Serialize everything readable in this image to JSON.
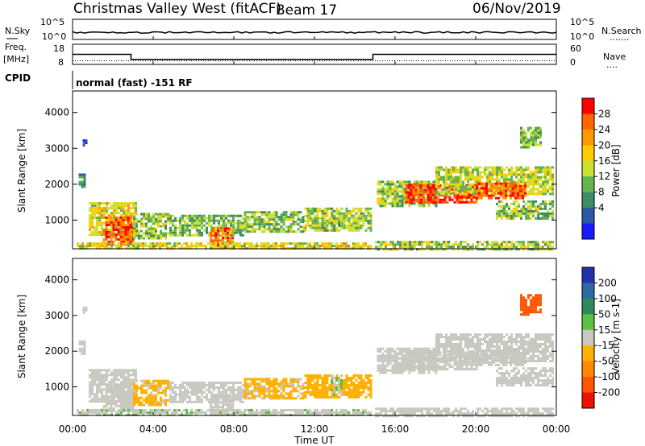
{
  "header": {
    "title": "Christmas Valley West (fitACF)",
    "beam": "Beam 17",
    "date": "06/Nov/2019"
  },
  "sky_panel": {
    "left_label": "N.Sky",
    "right_label": "N.Search",
    "left_ticks": [
      "10^5",
      "10^0"
    ],
    "right_ticks": [
      "10^5",
      "10^0"
    ],
    "right_legend": "......."
  },
  "freq_panel": {
    "left_label_1": "Freq.",
    "left_label_2": "[MHz]",
    "left_ticks": [
      "18",
      "8"
    ],
    "right_label": "Nave",
    "right_ticks": [
      "60",
      "0"
    ],
    "right_legend": "...."
  },
  "cpid": {
    "label": "CPID",
    "value": "normal (fast) -151 RF"
  },
  "power_colorbar": {
    "label": "Power [dB]",
    "ticks": [
      "28",
      "24",
      "20",
      "16",
      "12",
      "8",
      "4"
    ],
    "colors": [
      "#ff0000",
      "#ff6600",
      "#ff9900",
      "#ffcc00",
      "#cce033",
      "#66b34d",
      "#3d8c66",
      "#2d5aa6",
      "#1a1aff"
    ]
  },
  "velocity_colorbar": {
    "label": "Velocity [m s-1]",
    "ticks": [
      "200",
      "100",
      "50",
      "15",
      "-15",
      "-50",
      "-100",
      "-200"
    ],
    "colors": [
      "#2233aa",
      "#2d6aa0",
      "#2f8a5a",
      "#5bc040",
      "#c8c8c0",
      "#ffb000",
      "#ff8800",
      "#ff5500",
      "#ee1100"
    ]
  },
  "axes": {
    "ylabel": "Slant Range [km]",
    "yticks": [
      "4000",
      "3000",
      "2000",
      "1000"
    ],
    "xlabel": "Time UT",
    "xticks": [
      "00:00",
      "04:00",
      "08:00",
      "12:00",
      "16:00",
      "20:00",
      "00:00"
    ]
  },
  "chart_data": {
    "type": "heatmap",
    "x_unit": "hours UT",
    "xlim": [
      0,
      24
    ],
    "ylim": [
      200,
      4600
    ],
    "y_unit": "km",
    "power_clim": [
      0,
      32
    ],
    "velocity_clim": [
      -250,
      250
    ],
    "backscatter_regions": [
      {
        "t0": 0.3,
        "t1": 0.6,
        "r0": 1900,
        "r1": 2300,
        "power": 8,
        "velocity": -15
      },
      {
        "t0": 0.5,
        "t1": 0.7,
        "r0": 3050,
        "r1": 3250,
        "power": 6,
        "velocity": -15
      },
      {
        "t0": 0.8,
        "t1": 3.2,
        "r0": 600,
        "r1": 1500,
        "power": 18,
        "velocity": -15
      },
      {
        "t0": 1.5,
        "t1": 3.0,
        "r0": 300,
        "r1": 1100,
        "power": 28,
        "velocity": -15
      },
      {
        "t0": 3.0,
        "t1": 4.8,
        "r0": 500,
        "r1": 1200,
        "power": 14,
        "velocity": -40
      },
      {
        "t0": 4.8,
        "t1": 8.5,
        "r0": 600,
        "r1": 1150,
        "power": 12,
        "velocity": -15
      },
      {
        "t0": 6.8,
        "t1": 8.0,
        "r0": 250,
        "r1": 800,
        "power": 26,
        "velocity": -15
      },
      {
        "t0": 8.5,
        "t1": 11.5,
        "r0": 650,
        "r1": 1250,
        "power": 13,
        "velocity": -40
      },
      {
        "t0": 11.5,
        "t1": 14.8,
        "r0": 700,
        "r1": 1350,
        "power": 15,
        "velocity": -60
      },
      {
        "t0": 12.8,
        "t1": 13.4,
        "r0": 750,
        "r1": 1350,
        "power": 14,
        "velocity": 30
      },
      {
        "t0": 0.2,
        "t1": 14.8,
        "r0": 200,
        "r1": 380,
        "power": 18,
        "velocity": 20
      },
      {
        "t0": 15.1,
        "t1": 18.0,
        "r0": 1400,
        "r1": 2100,
        "power": 14,
        "velocity": -15
      },
      {
        "t0": 16.5,
        "t1": 20.0,
        "r0": 1500,
        "r1": 2000,
        "power": 30,
        "velocity": -15
      },
      {
        "t0": 18.0,
        "t1": 23.8,
        "r0": 1700,
        "r1": 2500,
        "power": 16,
        "velocity": -15
      },
      {
        "t0": 20.0,
        "t1": 22.5,
        "r0": 1600,
        "r1": 2050,
        "power": 28,
        "velocity": -15
      },
      {
        "t0": 21.0,
        "t1": 23.8,
        "r0": 1050,
        "r1": 1550,
        "power": 13,
        "velocity": -15
      },
      {
        "t0": 22.2,
        "t1": 23.2,
        "r0": 3000,
        "r1": 3600,
        "power": 12,
        "velocity": -200
      },
      {
        "t0": 15.0,
        "t1": 23.8,
        "r0": 200,
        "r1": 420,
        "power": 14,
        "velocity": 15
      }
    ],
    "nsky_level": 0.35,
    "freq_segments": [
      {
        "t0": 0,
        "t1": 2.9,
        "mhz": 13
      },
      {
        "t0": 2.9,
        "t1": 14.9,
        "mhz": 10.5
      },
      {
        "t0": 14.9,
        "t1": 24,
        "mhz": 13
      }
    ]
  }
}
